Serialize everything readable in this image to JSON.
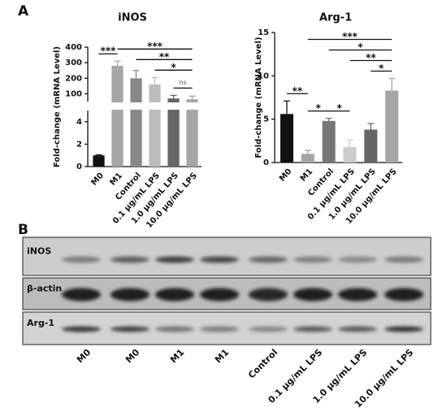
{
  "panels": [
    "A",
    "B"
  ],
  "chart_data": [
    {
      "type": "bar",
      "title": "iNOS",
      "y_label": "Fold-change (mRNA Level)",
      "categories": [
        "M0",
        "M1",
        "Control",
        "0.1 μg/mL LPS",
        "1.0 μg/mL LPS",
        "10.0 μg/mL LPS"
      ],
      "values": [
        1,
        280,
        200,
        160,
        70,
        65
      ],
      "errors": [
        0.05,
        30,
        50,
        45,
        20,
        20
      ],
      "colors": [
        "#111111",
        "#a6a6a6",
        "#888888",
        "#bdbdbd",
        "#666666",
        "#a6a6a6"
      ],
      "y_segments": [
        {
          "ylim": [
            0,
            5
          ],
          "yticks": [
            0,
            2,
            4
          ]
        },
        {
          "ylim": [
            50,
            400
          ],
          "yticks": [
            100,
            200,
            300,
            400
          ]
        }
      ],
      "significance": [
        {
          "groups": [
            "1.0 μg/mL LPS",
            "10.0 μg/mL LPS"
          ],
          "label": "ns"
        },
        {
          "groups": [
            "0.1 μg/mL LPS",
            "10.0 μg/mL LPS"
          ],
          "label": "*"
        },
        {
          "groups": [
            "Control",
            "10.0 μg/mL LPS"
          ],
          "label": "**"
        },
        {
          "groups": [
            "M1",
            "10.0 μg/mL LPS"
          ],
          "label": "***"
        },
        {
          "groups": [
            "M0",
            "M1"
          ],
          "label": "***"
        }
      ]
    },
    {
      "type": "bar",
      "title": "Arg-1",
      "y_label": "Fold-change (mRNA Level)",
      "categories": [
        "M0",
        "M1",
        "Control",
        "0.1 μg/mL LPS",
        "1.0 μg/mL LPS",
        "10.0 μg/mL LPS"
      ],
      "values": [
        5.6,
        1.0,
        4.8,
        1.8,
        3.8,
        8.3
      ],
      "errors": [
        1.5,
        0.4,
        0.3,
        0.8,
        0.7,
        1.4
      ],
      "colors": [
        "#111111",
        "#a6a6a6",
        "#777777",
        "#cccccc",
        "#666666",
        "#a6a6a6"
      ],
      "ylim": [
        0,
        15
      ],
      "yticks": [
        0,
        5,
        10,
        15
      ],
      "significance": [
        {
          "groups": [
            "M0",
            "M1"
          ],
          "label": "**"
        },
        {
          "groups": [
            "M1",
            "Control"
          ],
          "label": "*"
        },
        {
          "groups": [
            "Control",
            "0.1 μg/mL LPS"
          ],
          "label": "*"
        },
        {
          "groups": [
            "1.0 μg/mL LPS",
            "10.0 μg/mL LPS"
          ],
          "label": "*"
        },
        {
          "groups": [
            "0.1 μg/mL LPS",
            "10.0 μg/mL LPS"
          ],
          "label": "**"
        },
        {
          "groups": [
            "Control",
            "10.0 μg/mL LPS"
          ],
          "label": "*"
        },
        {
          "groups": [
            "M1",
            "10.0 μg/mL LPS"
          ],
          "label": "***"
        }
      ]
    }
  ],
  "blot": {
    "rows": [
      "iNOS",
      "β-actin",
      "Arg-1"
    ],
    "lanes": [
      "M0",
      "M0",
      "M1",
      "M1",
      "Control",
      "0.1 μg/mL LPS",
      "1.0 μg/mL LPS",
      "10.0 μg/mL LPS"
    ]
  }
}
